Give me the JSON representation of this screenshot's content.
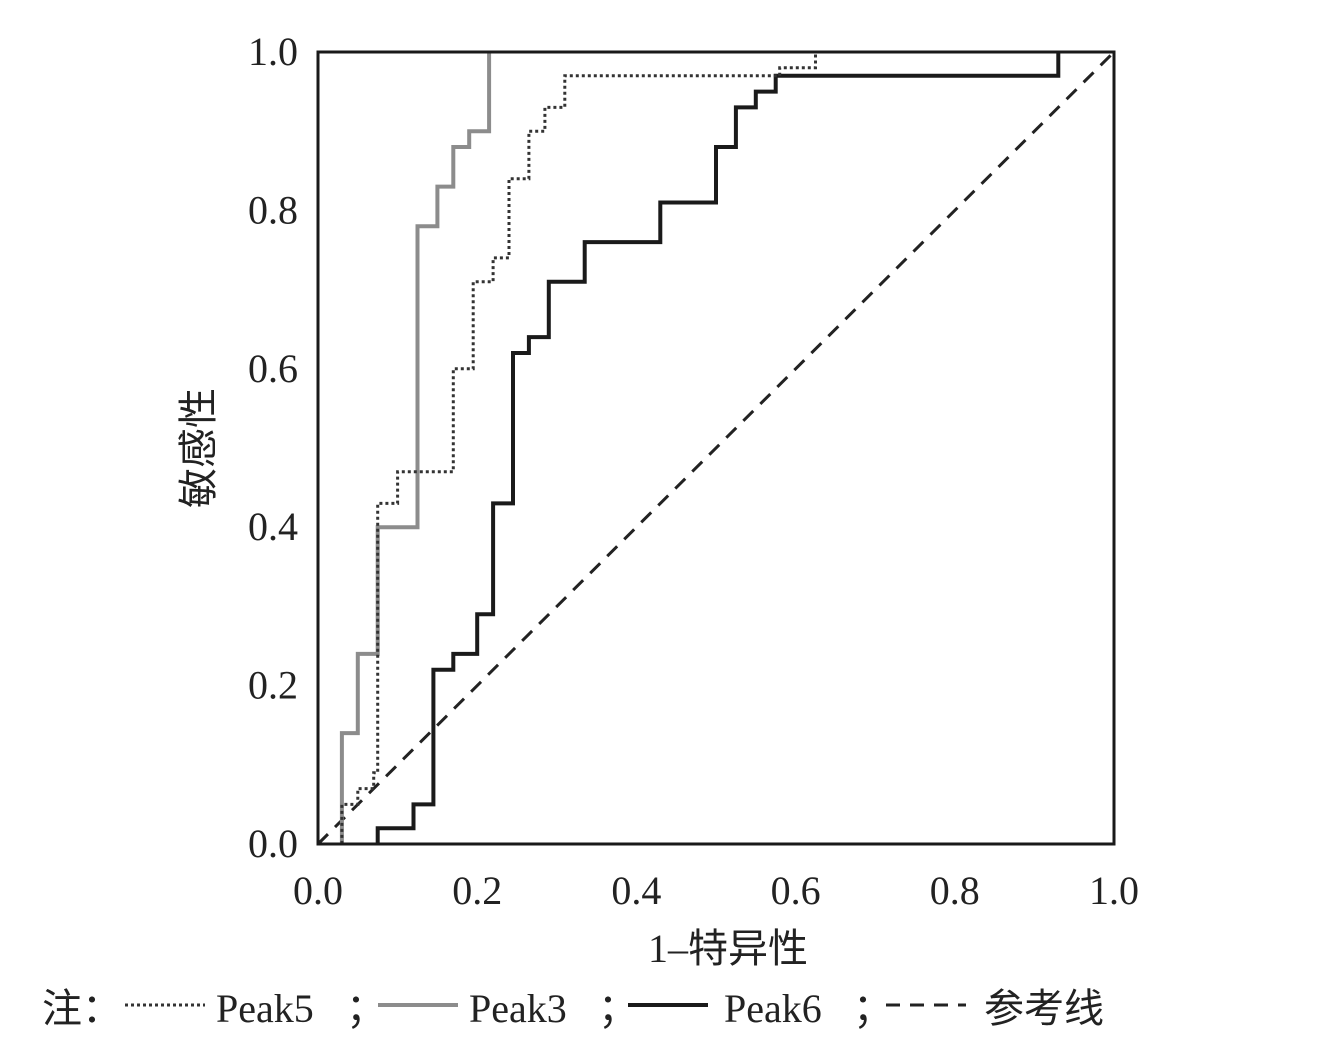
{
  "chart_data": {
    "type": "line",
    "title": "",
    "xlabel": "1–特异性",
    "ylabel": "敏感性",
    "xlim": [
      0,
      1
    ],
    "ylim": [
      0,
      1
    ],
    "x_ticks": [
      "0.0",
      "0.2",
      "0.4",
      "0.6",
      "0.8",
      "1.0"
    ],
    "y_ticks": [
      "0.0",
      "0.2",
      "0.4",
      "0.6",
      "0.8",
      "1.0"
    ],
    "grid": false,
    "legend": {
      "placement": "bottom",
      "prefix": "注：",
      "separator": "；"
    },
    "series": [
      {
        "name": "Peak5",
        "style": "dotted",
        "color": "#333333",
        "points": [
          [
            0,
            0
          ],
          [
            0.03,
            0
          ],
          [
            0.03,
            0.05
          ],
          [
            0.05,
            0.05
          ],
          [
            0.05,
            0.07
          ],
          [
            0.07,
            0.07
          ],
          [
            0.07,
            0.09
          ],
          [
            0.075,
            0.09
          ],
          [
            0.075,
            0.43
          ],
          [
            0.1,
            0.43
          ],
          [
            0.1,
            0.47
          ],
          [
            0.17,
            0.47
          ],
          [
            0.17,
            0.6
          ],
          [
            0.195,
            0.6
          ],
          [
            0.195,
            0.71
          ],
          [
            0.22,
            0.71
          ],
          [
            0.22,
            0.74
          ],
          [
            0.24,
            0.74
          ],
          [
            0.24,
            0.84
          ],
          [
            0.265,
            0.84
          ],
          [
            0.265,
            0.9
          ],
          [
            0.285,
            0.9
          ],
          [
            0.285,
            0.93
          ],
          [
            0.31,
            0.93
          ],
          [
            0.31,
            0.97
          ],
          [
            0.58,
            0.97
          ],
          [
            0.58,
            0.98
          ],
          [
            0.625,
            0.98
          ],
          [
            0.625,
            1.0
          ],
          [
            1.0,
            1.0
          ]
        ]
      },
      {
        "name": "Peak3",
        "style": "solid",
        "color": "#8c8c8c",
        "points": [
          [
            0.03,
            0
          ],
          [
            0.03,
            0.14
          ],
          [
            0.05,
            0.14
          ],
          [
            0.05,
            0.24
          ],
          [
            0.075,
            0.24
          ],
          [
            0.075,
            0.4
          ],
          [
            0.125,
            0.4
          ],
          [
            0.125,
            0.78
          ],
          [
            0.15,
            0.78
          ],
          [
            0.15,
            0.83
          ],
          [
            0.17,
            0.83
          ],
          [
            0.17,
            0.88
          ],
          [
            0.19,
            0.88
          ],
          [
            0.19,
            0.9
          ],
          [
            0.215,
            0.9
          ],
          [
            0.215,
            1.0
          ]
        ]
      },
      {
        "name": "Peak6",
        "style": "solid",
        "color": "#1a1a1a",
        "points": [
          [
            0.075,
            0
          ],
          [
            0.075,
            0.02
          ],
          [
            0.12,
            0.02
          ],
          [
            0.12,
            0.05
          ],
          [
            0.145,
            0.05
          ],
          [
            0.145,
            0.22
          ],
          [
            0.17,
            0.22
          ],
          [
            0.17,
            0.24
          ],
          [
            0.2,
            0.24
          ],
          [
            0.2,
            0.29
          ],
          [
            0.22,
            0.29
          ],
          [
            0.22,
            0.43
          ],
          [
            0.245,
            0.43
          ],
          [
            0.245,
            0.62
          ],
          [
            0.265,
            0.62
          ],
          [
            0.265,
            0.64
          ],
          [
            0.29,
            0.64
          ],
          [
            0.29,
            0.71
          ],
          [
            0.335,
            0.71
          ],
          [
            0.335,
            0.76
          ],
          [
            0.43,
            0.76
          ],
          [
            0.43,
            0.81
          ],
          [
            0.5,
            0.81
          ],
          [
            0.5,
            0.88
          ],
          [
            0.525,
            0.88
          ],
          [
            0.525,
            0.93
          ],
          [
            0.55,
            0.93
          ],
          [
            0.55,
            0.95
          ],
          [
            0.575,
            0.95
          ],
          [
            0.575,
            0.97
          ],
          [
            0.93,
            0.97
          ],
          [
            0.93,
            1.0
          ]
        ]
      },
      {
        "name": "参考线",
        "style": "dashed",
        "color": "#222222",
        "points": [
          [
            0,
            0
          ],
          [
            1,
            1
          ]
        ]
      }
    ]
  }
}
